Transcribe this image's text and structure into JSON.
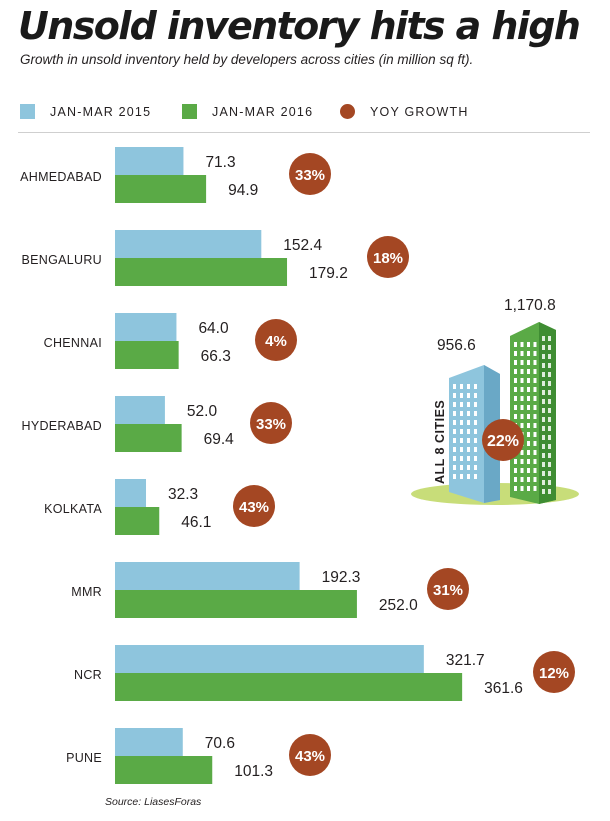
{
  "title": "Unsold inventory hits a high",
  "subtitle": "Growth in unsold inventory held by developers across cities (in million sq ft).",
  "source": "Source: LiasesForas",
  "legend": [
    {
      "label": "JAN-MAR 2015",
      "color": "#8ec5dd",
      "shape": "square"
    },
    {
      "label": "JAN-MAR 2016",
      "color": "#5aaa46",
      "shape": "square"
    },
    {
      "label": "YOY GROWTH",
      "color": "#a44723",
      "shape": "circle"
    }
  ],
  "total": {
    "label": "ALL 8 CITIES",
    "value_2015": "956.6",
    "value_2016": "1,170.8",
    "growth": "22%"
  },
  "chart_data": {
    "type": "bar",
    "orientation": "horizontal",
    "title": "Unsold inventory hits a high",
    "unit": "million sq ft",
    "categories": [
      "AHMEDABAD",
      "BENGALURU",
      "CHENNAI",
      "HYDERABAD",
      "KOLKATA",
      "MMR",
      "NCR",
      "PUNE"
    ],
    "series": [
      {
        "name": "JAN-MAR 2015",
        "color": "#8ec5dd",
        "values": [
          71.3,
          152.4,
          64.0,
          52.0,
          32.3,
          192.3,
          321.7,
          70.6
        ]
      },
      {
        "name": "JAN-MAR 2016",
        "color": "#5aaa46",
        "values": [
          94.9,
          179.2,
          66.3,
          69.4,
          46.1,
          252.0,
          361.6,
          101.3
        ]
      }
    ],
    "yoy_growth": {
      "name": "YOY GROWTH",
      "color": "#a44723",
      "values": [
        "33%",
        "18%",
        "4%",
        "33%",
        "43%",
        "31%",
        "12%",
        "43%"
      ]
    }
  }
}
